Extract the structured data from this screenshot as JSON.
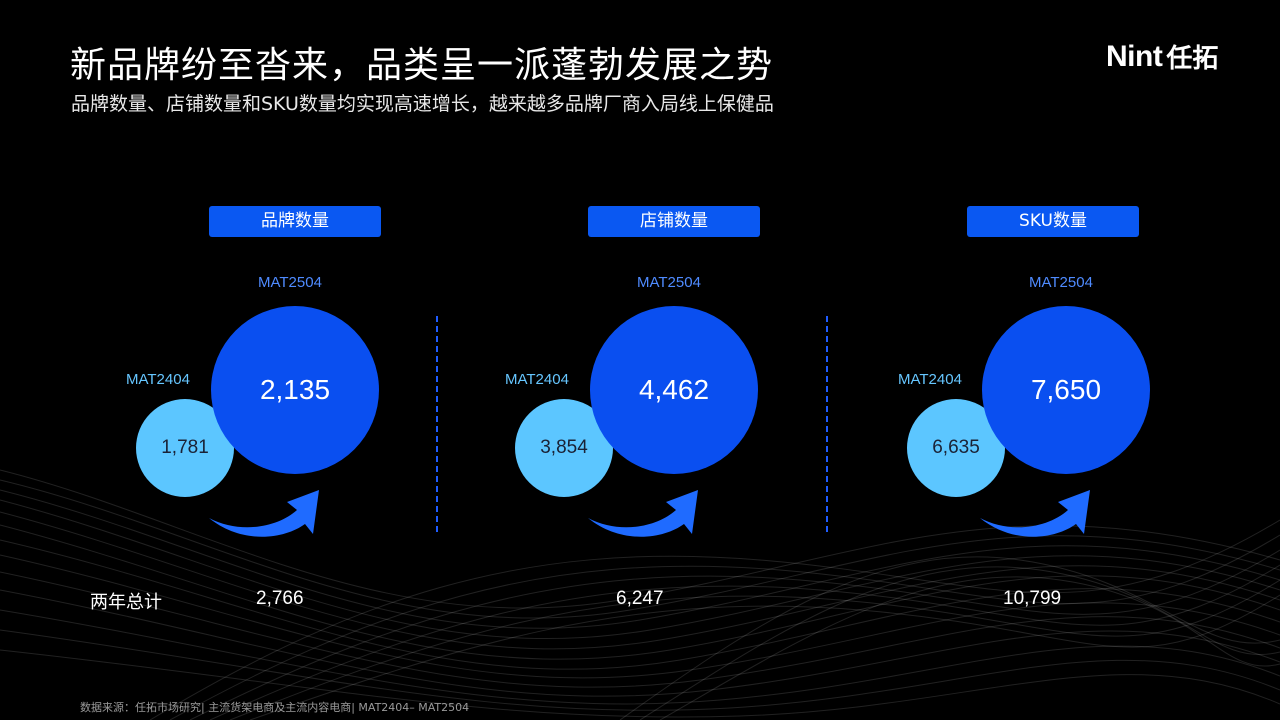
{
  "header": {
    "title": "新品牌纷至沓来，品类呈一派蓬勃发展之势",
    "subtitle": "品牌数量、店铺数量和SKU数量均实现高速增长，越来越多品牌厂商入局线上保健品"
  },
  "logo": {
    "latin": "Nint",
    "cn": "任拓"
  },
  "metrics": [
    {
      "label": "品牌数量",
      "current_period": "MAT2504",
      "prev_period": "MAT2404",
      "current_value": "2,135",
      "prev_value": "1,781",
      "total": "2,766"
    },
    {
      "label": "店铺数量",
      "current_period": "MAT2504",
      "prev_period": "MAT2404",
      "current_value": "4,462",
      "prev_value": "3,854",
      "total": "6,247"
    },
    {
      "label": "SKU数量",
      "current_period": "MAT2504",
      "prev_period": "MAT2404",
      "current_value": "7,650",
      "prev_value": "6,635",
      "total": "10,799"
    }
  ],
  "totals_label": "两年总计",
  "footer": "数据来源：任拓市场研究| 主流货架电商及主流内容电商| MAT2404– MAT2504",
  "colors": {
    "background": "#000000",
    "pill": "#0a58f2",
    "big_circle": "#0a4ff0",
    "small_circle": "#5cc6ff",
    "arrow": "#1f6bff"
  }
}
